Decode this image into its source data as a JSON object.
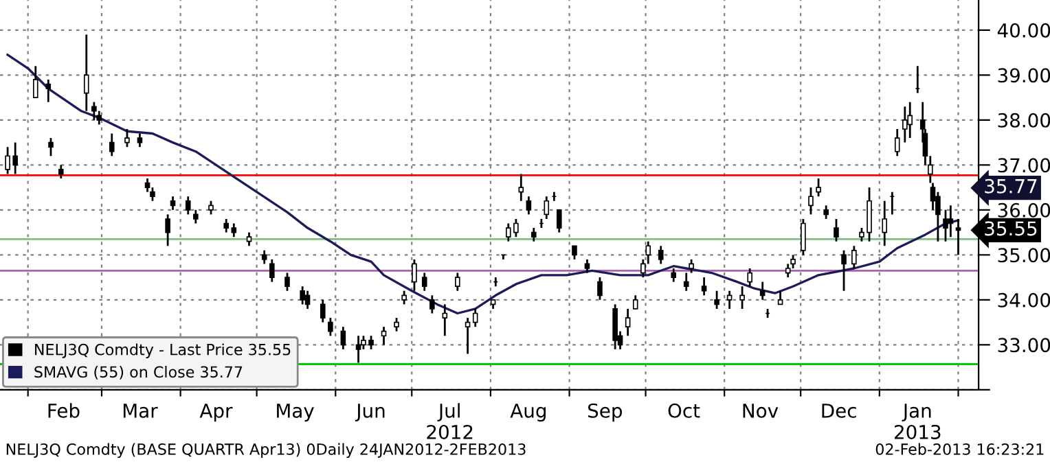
{
  "chart_data": {
    "type": "candlestick",
    "x": [
      "2012-01-24",
      "2012-01-27",
      "2012-02-04",
      "2012-02-09",
      "2012-02-10",
      "2012-02-14",
      "2012-02-24",
      "2012-02-27",
      "2012-02-29",
      "2012-03-05",
      "2012-03-11",
      "2012-03-16",
      "2012-03-19",
      "2012-03-21",
      "2012-03-27",
      "2012-03-29",
      "2012-04-04",
      "2012-04-07",
      "2012-04-13",
      "2012-04-19",
      "2012-04-22",
      "2012-04-28",
      "2012-05-04",
      "2012-05-07",
      "2012-05-13",
      "2012-05-19",
      "2012-05-21",
      "2012-05-27",
      "2012-05-30",
      "2012-06-04",
      "2012-06-10",
      "2012-06-12",
      "2012-06-15",
      "2012-06-20",
      "2012-06-25",
      "2012-06-28",
      "2012-07-02",
      "2012-07-06",
      "2012-07-09",
      "2012-07-14",
      "2012-07-19",
      "2012-07-23",
      "2012-07-26",
      "2012-08-02",
      "2012-08-03",
      "2012-08-06",
      "2012-08-08",
      "2012-08-11",
      "2012-08-13",
      "2012-08-16",
      "2012-08-18",
      "2012-08-21",
      "2012-08-23",
      "2012-08-26",
      "2012-08-28",
      "2012-09-03",
      "2012-09-08",
      "2012-09-13",
      "2012-09-19",
      "2012-09-21",
      "2012-09-24",
      "2012-09-27",
      "2012-09-30",
      "2012-10-02",
      "2012-10-07",
      "2012-10-12",
      "2012-10-17",
      "2012-10-19",
      "2012-10-24",
      "2012-10-29",
      "2012-11-03",
      "2012-11-08",
      "2012-11-11",
      "2012-11-16",
      "2012-11-18",
      "2012-11-23",
      "2012-11-26",
      "2012-11-28",
      "2012-12-02",
      "2012-12-05",
      "2012-12-08",
      "2012-12-11",
      "2012-12-15",
      "2012-12-18",
      "2012-12-22",
      "2012-12-25",
      "2012-12-28",
      "2013-01-03",
      "2013-01-06",
      "2013-01-08",
      "2013-01-11",
      "2013-01-13",
      "2013-01-16",
      "2013-01-18",
      "2013-01-19",
      "2013-01-21",
      "2013-01-22",
      "2013-01-24",
      "2013-01-27",
      "2013-01-29",
      "2013-02-01"
    ],
    "series": [
      {
        "name": "NELJ3Q Comdty - Last Price 35.55",
        "color": "#000000",
        "ohlc": [
          [
            36.9,
            37.4,
            36.8,
            37.2
          ],
          [
            37.2,
            37.5,
            36.8,
            37.0
          ],
          [
            38.5,
            39.2,
            38.5,
            38.9
          ],
          [
            38.8,
            38.9,
            38.4,
            38.7
          ],
          [
            37.5,
            37.6,
            37.2,
            37.4
          ],
          [
            36.9,
            37.0,
            36.7,
            36.8
          ],
          [
            38.6,
            39.9,
            38.2,
            39.0
          ],
          [
            38.3,
            38.4,
            38.0,
            38.2
          ],
          [
            38.1,
            38.2,
            37.9,
            38.0
          ],
          [
            37.5,
            37.7,
            37.2,
            37.3
          ],
          [
            37.5,
            37.8,
            37.4,
            37.6
          ],
          [
            37.6,
            37.7,
            37.4,
            37.5
          ],
          [
            36.6,
            36.7,
            36.4,
            36.5
          ],
          [
            36.4,
            36.5,
            36.2,
            36.3
          ],
          [
            35.8,
            35.9,
            35.2,
            35.5
          ],
          [
            36.2,
            36.3,
            36.0,
            36.1
          ],
          [
            36.2,
            36.3,
            35.9,
            36.0
          ],
          [
            35.9,
            36.0,
            35.7,
            35.8
          ],
          [
            36.0,
            36.2,
            35.9,
            36.1
          ],
          [
            35.7,
            35.8,
            35.5,
            35.6
          ],
          [
            35.6,
            35.7,
            35.4,
            35.5
          ],
          [
            35.3,
            35.5,
            35.2,
            35.4
          ],
          [
            35.0,
            35.1,
            34.8,
            34.9
          ],
          [
            34.8,
            34.9,
            34.4,
            34.5
          ],
          [
            34.5,
            34.6,
            34.2,
            34.3
          ],
          [
            34.2,
            34.3,
            33.9,
            34.0
          ],
          [
            34.1,
            34.2,
            33.8,
            33.9
          ],
          [
            33.9,
            34.0,
            33.5,
            33.6
          ],
          [
            33.5,
            33.6,
            33.2,
            33.3
          ],
          [
            33.3,
            33.4,
            32.9,
            33.0
          ],
          [
            33.0,
            33.2,
            32.6,
            32.9
          ],
          [
            33.0,
            33.2,
            32.9,
            33.1
          ],
          [
            33.1,
            33.2,
            32.9,
            33.0
          ],
          [
            33.2,
            33.4,
            33.0,
            33.3
          ],
          [
            33.4,
            33.6,
            33.3,
            33.5
          ],
          [
            34.0,
            34.2,
            33.9,
            34.1
          ],
          [
            34.4,
            34.9,
            34.2,
            34.8
          ],
          [
            34.5,
            34.6,
            34.2,
            34.3
          ],
          [
            34.0,
            34.1,
            33.7,
            33.8
          ],
          [
            33.6,
            33.9,
            33.2,
            33.7
          ],
          [
            34.3,
            34.6,
            34.2,
            34.5
          ],
          [
            33.4,
            33.6,
            32.8,
            33.5
          ],
          [
            33.5,
            33.8,
            33.4,
            33.7
          ],
          [
            33.9,
            34.0,
            33.8,
            34.0
          ],
          [
            34.4,
            34.5,
            34.3,
            34.4
          ],
          [
            35.0,
            35.0,
            34.9,
            35.0
          ],
          [
            35.4,
            35.7,
            35.3,
            35.6
          ],
          [
            35.5,
            35.8,
            35.4,
            35.7
          ],
          [
            36.4,
            36.8,
            36.2,
            36.5
          ],
          [
            36.2,
            36.3,
            35.9,
            36.0
          ],
          [
            35.5,
            35.6,
            35.3,
            35.4
          ],
          [
            35.7,
            35.8,
            35.6,
            35.7
          ],
          [
            35.9,
            36.3,
            35.8,
            36.2
          ],
          [
            36.3,
            36.4,
            36.2,
            36.3
          ],
          [
            36.0,
            36.0,
            35.5,
            35.6
          ],
          [
            35.2,
            35.2,
            34.9,
            35.0
          ],
          [
            34.8,
            34.9,
            34.6,
            34.7
          ],
          [
            34.4,
            34.5,
            34.0,
            34.1
          ],
          [
            33.8,
            33.9,
            32.9,
            33.1
          ],
          [
            33.2,
            33.3,
            32.9,
            33.0
          ],
          [
            33.4,
            33.8,
            33.2,
            33.6
          ],
          [
            33.8,
            34.1,
            33.8,
            34.0
          ],
          [
            34.6,
            34.9,
            34.5,
            34.8
          ],
          [
            35.0,
            35.3,
            34.8,
            35.2
          ],
          [
            35.1,
            35.2,
            34.8,
            34.9
          ],
          [
            34.6,
            34.7,
            34.4,
            34.5
          ],
          [
            34.4,
            34.6,
            34.2,
            34.3
          ],
          [
            34.7,
            34.9,
            34.6,
            34.8
          ],
          [
            34.3,
            34.5,
            34.1,
            34.2
          ],
          [
            34.0,
            34.2,
            33.8,
            33.9
          ],
          [
            34.0,
            34.2,
            33.8,
            34.1
          ],
          [
            34.0,
            34.3,
            33.8,
            34.1
          ],
          [
            34.4,
            34.7,
            34.3,
            34.6
          ],
          [
            34.2,
            34.4,
            34.0,
            34.1
          ],
          [
            33.7,
            33.8,
            33.6,
            33.7
          ],
          [
            33.9,
            34.2,
            33.9,
            34.0
          ],
          [
            34.6,
            34.8,
            34.5,
            34.7
          ],
          [
            34.8,
            35.0,
            34.7,
            34.9
          ],
          [
            35.1,
            35.8,
            35.0,
            35.7
          ],
          [
            36.1,
            36.5,
            35.9,
            36.3
          ],
          [
            36.4,
            36.7,
            36.3,
            36.5
          ],
          [
            36.0,
            36.1,
            35.8,
            35.9
          ],
          [
            35.6,
            35.8,
            35.3,
            35.4
          ],
          [
            35.0,
            35.1,
            34.2,
            34.8
          ],
          [
            34.8,
            35.2,
            34.7,
            35.1
          ],
          [
            35.4,
            35.6,
            35.3,
            35.5
          ],
          [
            35.5,
            36.5,
            35.3,
            36.2
          ],
          [
            35.5,
            36.2,
            35.2,
            35.8
          ],
          [
            36.3,
            36.4,
            35.9,
            36.3
          ],
          [
            37.3,
            37.8,
            37.2,
            37.6
          ],
          [
            37.8,
            38.3,
            37.5,
            38.0
          ],
          [
            37.9,
            38.4,
            37.6,
            38.1
          ],
          [
            38.7,
            39.2,
            38.6,
            38.7
          ],
          [
            38.0,
            38.4,
            37.5,
            37.8
          ],
          [
            37.7,
            37.8,
            37.0,
            37.2
          ],
          [
            36.8,
            37.2,
            36.6,
            37.0
          ],
          [
            36.5,
            36.6,
            36.0,
            36.2
          ],
          [
            36.3,
            36.4,
            35.3,
            35.9
          ],
          [
            35.8,
            36.0,
            35.3,
            35.6
          ],
          [
            35.8,
            36.1,
            35.4,
            35.7
          ],
          [
            35.6,
            35.8,
            35.0,
            35.55
          ]
        ]
      },
      {
        "name": "SMAVG (55) on Close 35.77",
        "color": "#1c1c5a",
        "type": "line",
        "x": [
          "2012-01-24",
          "2012-02-01",
          "2012-02-09",
          "2012-02-22",
          "2012-02-29",
          "2012-03-11",
          "2012-03-21",
          "2012-03-29",
          "2012-04-07",
          "2012-04-19",
          "2012-05-01",
          "2012-05-13",
          "2012-05-21",
          "2012-05-30",
          "2012-06-07",
          "2012-06-15",
          "2012-06-20",
          "2012-07-01",
          "2012-07-11",
          "2012-07-19",
          "2012-07-26",
          "2012-08-03",
          "2012-08-11",
          "2012-08-21",
          "2012-08-31",
          "2012-09-10",
          "2012-09-21",
          "2012-10-02",
          "2012-10-07",
          "2012-10-12",
          "2012-10-17",
          "2012-10-27",
          "2012-11-06",
          "2012-11-13",
          "2012-11-21",
          "2012-11-28",
          "2012-12-08",
          "2012-12-22",
          "2013-01-01",
          "2013-01-08",
          "2013-01-19",
          "2013-01-27",
          "2013-02-01"
        ],
        "values": [
          39.45,
          39.15,
          38.7,
          38.2,
          38.05,
          37.75,
          37.7,
          37.5,
          37.3,
          36.85,
          36.4,
          35.95,
          35.6,
          35.3,
          35.0,
          34.85,
          34.55,
          34.2,
          33.9,
          33.7,
          33.8,
          34.1,
          34.35,
          34.55,
          34.55,
          34.65,
          34.55,
          34.55,
          34.65,
          34.75,
          34.7,
          34.6,
          34.4,
          34.25,
          34.15,
          34.3,
          34.55,
          34.7,
          34.85,
          35.15,
          35.45,
          35.7,
          35.77
        ]
      }
    ],
    "xlim": [
      "2012-01-21",
      "2013-02-09"
    ],
    "xticks": [
      {
        "value": "2012-02-01",
        "label": null
      },
      {
        "value": "2012-02-15",
        "label": "Feb"
      },
      {
        "value": "2012-03-01",
        "label": null
      },
      {
        "value": "2012-03-16",
        "label": "Mar"
      },
      {
        "value": "2012-04-01",
        "label": null
      },
      {
        "value": "2012-04-15",
        "label": "Apr"
      },
      {
        "value": "2012-05-01",
        "label": null
      },
      {
        "value": "2012-05-16",
        "label": "May"
      },
      {
        "value": "2012-06-01",
        "label": null
      },
      {
        "value": "2012-06-15",
        "label": "Jun"
      },
      {
        "value": "2012-07-01",
        "label": null
      },
      {
        "value": "2012-07-16",
        "label": "Jul\n2012"
      },
      {
        "value": "2012-08-01",
        "label": null
      },
      {
        "value": "2012-08-16",
        "label": "Aug"
      },
      {
        "value": "2012-09-01",
        "label": null
      },
      {
        "value": "2012-09-15",
        "label": "Sep"
      },
      {
        "value": "2012-10-01",
        "label": null
      },
      {
        "value": "2012-10-16",
        "label": "Oct"
      },
      {
        "value": "2012-11-01",
        "label": null
      },
      {
        "value": "2012-11-15",
        "label": "Nov"
      },
      {
        "value": "2012-12-01",
        "label": null
      },
      {
        "value": "2012-12-16",
        "label": "Dec"
      },
      {
        "value": "2013-01-01",
        "label": null
      },
      {
        "value": "2013-01-16",
        "label": "Jan\n2013"
      },
      {
        "value": "2013-02-01",
        "label": null
      }
    ],
    "ylim": [
      32.0,
      40.67
    ],
    "yticks": [
      {
        "value": 32,
        "label": null
      },
      {
        "value": 33,
        "label": "33.00"
      },
      {
        "value": 34,
        "label": "34.00"
      },
      {
        "value": 35,
        "label": "35.00"
      },
      {
        "value": 36,
        "label": "36.00"
      },
      {
        "value": 37,
        "label": "37.00"
      },
      {
        "value": 38,
        "label": "38.00"
      },
      {
        "value": 39,
        "label": "39.00"
      },
      {
        "value": 40,
        "label": "40.00"
      }
    ],
    "ref_lines": [
      {
        "axis": "y",
        "value": 36.77,
        "color": "#ff0000"
      },
      {
        "axis": "y",
        "value": 35.35,
        "color": "#80c080"
      },
      {
        "axis": "y",
        "value": 34.65,
        "color": "#b060b0"
      },
      {
        "axis": "y",
        "value": 32.57,
        "color": "#00cc00"
      }
    ],
    "annotations": [
      {
        "text": "35.77",
        "x": "2013-02-01",
        "y": 35.77
      },
      {
        "text": "35.55",
        "x": "2013-02-01",
        "y": 35.55
      },
      "NELJ3Q Comdty (BASE QUARTR Apr13) 0Daily 24JAN2012-2FEB2013",
      "02-Feb-2013 16:23:21"
    ],
    "grid": true,
    "legend": "bottom left"
  }
}
